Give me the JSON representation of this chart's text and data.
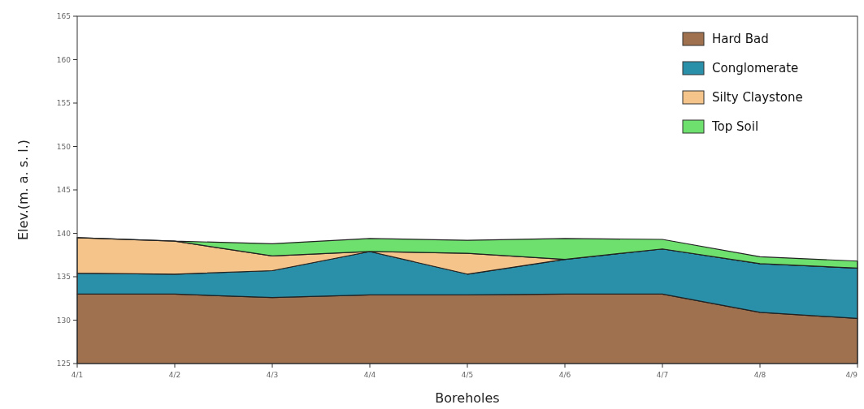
{
  "chart_data": {
    "type": "area",
    "xlabel": "Boreholes",
    "ylabel": "Elev.(m. a. s. l.)",
    "categories": [
      "4/1",
      "4/2",
      "4/3",
      "4/4",
      "4/5",
      "4/6",
      "4/7",
      "4/8",
      "4/9"
    ],
    "ylim": [
      125,
      165
    ],
    "yticks": [
      125,
      130,
      135,
      140,
      145,
      150,
      155,
      160,
      165
    ],
    "grid": false,
    "legend": "top right",
    "series": [
      {
        "name": "Hard Bad",
        "color": "#a0714f",
        "values": [
          133.0,
          133.0,
          132.6,
          132.9,
          132.9,
          133.0,
          133.0,
          130.9,
          130.2
        ]
      },
      {
        "name": "Conglomerate",
        "color": "#2a8fa8",
        "values": [
          135.4,
          135.3,
          135.7,
          137.9,
          135.3,
          137.0,
          138.2,
          136.5,
          136.0
        ]
      },
      {
        "name": "Silty Claystone",
        "color": "#f5c48a",
        "values": [
          139.5,
          139.1,
          137.4,
          137.9,
          137.7,
          137.0,
          138.2,
          136.5,
          136.0
        ]
      },
      {
        "name": "Top Soil",
        "color": "#6ee06e",
        "values": [
          139.5,
          139.1,
          138.8,
          139.4,
          139.2,
          139.4,
          139.3,
          137.3,
          136.8
        ]
      }
    ]
  }
}
